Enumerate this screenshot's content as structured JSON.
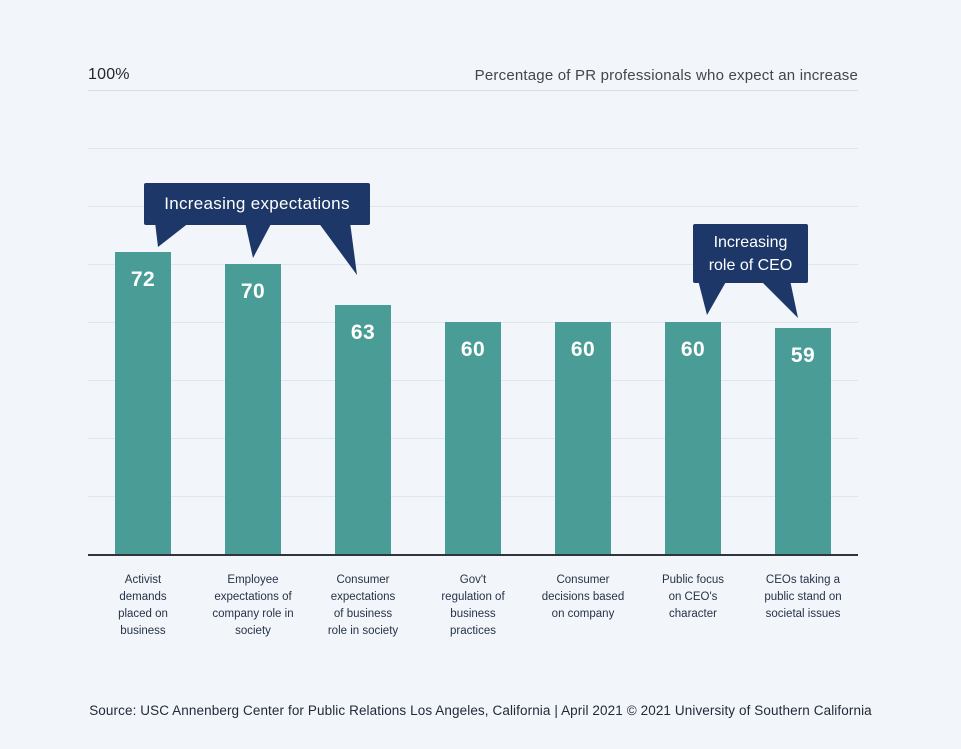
{
  "header": {
    "y_axis_max_label": "100%",
    "title": "Percentage of PR professionals who expect an increase"
  },
  "chart_data": {
    "type": "bar",
    "title": "Percentage of PR professionals who expect an increase",
    "xlabel": "",
    "ylabel": "",
    "ylim": [
      20,
      100
    ],
    "gridline_interval": 10,
    "grid": true,
    "legend": "none",
    "y_axis_labels_shown": [
      "100%"
    ],
    "categories": [
      "Activist\ndemands\nplaced on\nbusiness",
      "Employee\nexpectations of\ncompany role in\nsociety",
      "Consumer\nexpectations\nof business\nrole in society",
      "Gov't\nregulation of\nbusiness\npractices",
      "Consumer\ndecisions based\non company",
      "Public focus\non CEO's\ncharacter",
      "CEOs taking a\npublic stand on\nsocietal issues"
    ],
    "values": [
      72,
      70,
      63,
      60,
      60,
      60,
      59
    ],
    "annotations": [
      {
        "text": "Increasing expectations",
        "points_to": [
          "Activist demands placed on business",
          "Employee expectations of company role in society",
          "Consumer expectations of business role in society"
        ]
      },
      {
        "text": "Increasing\nrole of CEO",
        "points_to": [
          "Public focus on CEO's character",
          "CEOs taking a public stand on societal issues"
        ]
      }
    ]
  },
  "colors": {
    "background": "#F2F5F9",
    "bar": "#4A9D96",
    "annotation_bg": "#1C3768",
    "annotation_text": "#FFFFFF",
    "value_label": "#FFFFFF",
    "axis": "#30353D",
    "gridline": "#DEE6F0"
  },
  "footer": {
    "source": "Source: USC Annenberg Center for Public Relations Los Angeles, California | April 2021 © 2021 University of Southern California"
  }
}
